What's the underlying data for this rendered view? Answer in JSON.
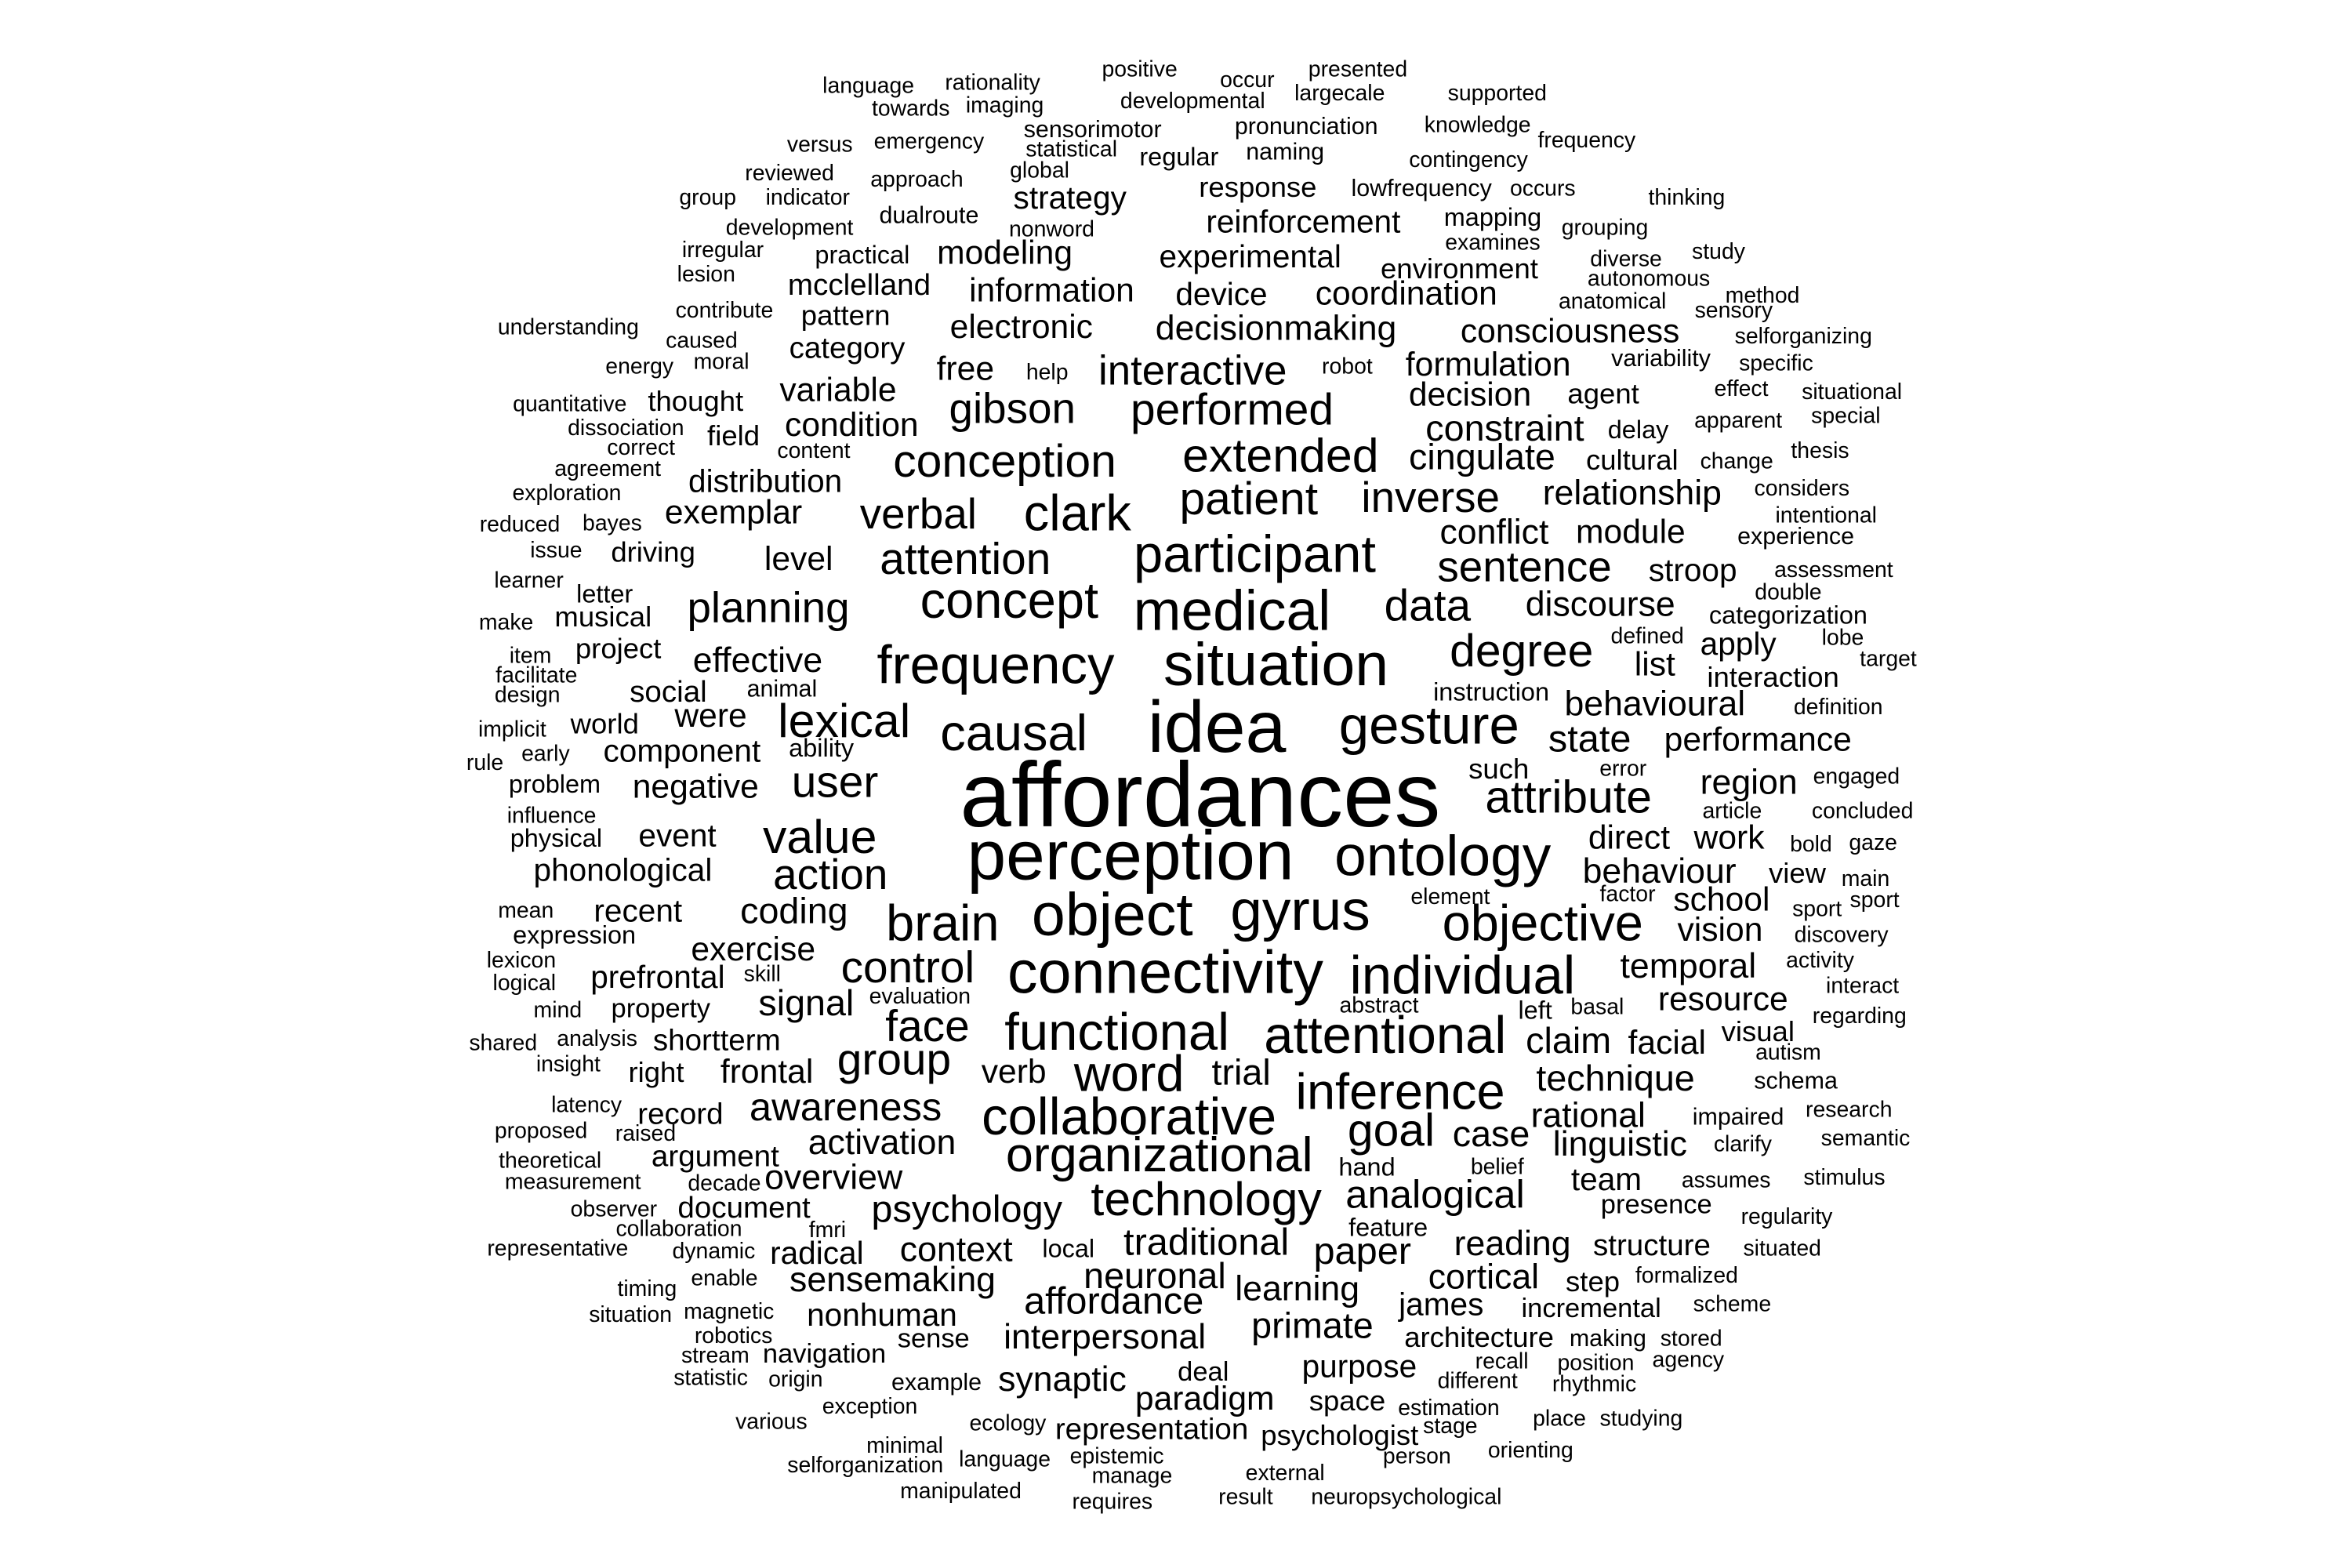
{
  "words": [
    "language",
    "rationality",
    "positive",
    "occur",
    "presented",
    "towards",
    "imaging",
    "developmental",
    "largecale",
    "supported",
    "sensorimotor",
    "pronunciation",
    "knowledge",
    "frequency",
    "versus",
    "emergency",
    "statistical",
    "regular",
    "naming",
    "contingency",
    "reviewed",
    "global",
    "approach",
    "response",
    "lowfrequency",
    "occurs",
    "thinking",
    "group",
    "indicator",
    "strategy",
    "dualroute",
    "reinforcement",
    "mapping",
    "development",
    "nonword",
    "grouping",
    "examines",
    "irregular",
    "practical",
    "modeling",
    "experimental",
    "environment",
    "diverse",
    "study",
    "lesion",
    "mcclelland",
    "information",
    "device",
    "coordination",
    "autonomous",
    "method",
    "anatomical",
    "sensory",
    "contribute",
    "pattern",
    "understanding",
    "electronic",
    "decisionmaking",
    "consciousness",
    "selforganizing",
    "caused",
    "category",
    "variability",
    "specific",
    "energy",
    "moral",
    "free",
    "help",
    "interactive",
    "robot",
    "formulation",
    "quantitative",
    "thought",
    "variable",
    "gibson",
    "performed",
    "decision",
    "agent",
    "effect",
    "situational",
    "dissociation",
    "field",
    "condition",
    "constraint",
    "delay",
    "apparent",
    "special",
    "correct",
    "content",
    "conception",
    "extended",
    "cingulate",
    "cultural",
    "change",
    "thesis",
    "agreement",
    "distribution",
    "patient",
    "inverse",
    "relationship",
    "considers",
    "exploration",
    "exemplar",
    "verbal",
    "clark",
    "intentional",
    "reduced",
    "bayes",
    "conflict",
    "module",
    "experience",
    "issue",
    "driving",
    "participant",
    "level",
    "attention",
    "sentence",
    "stroop",
    "assessment",
    "learner",
    "letter",
    "double",
    "make",
    "musical",
    "planning",
    "concept",
    "medical",
    "data",
    "discourse",
    "categorization",
    "project",
    "item",
    "degree",
    "defined",
    "apply",
    "lobe",
    "facilitate",
    "effective",
    "frequency",
    "situation",
    "list",
    "target",
    "design",
    "animal",
    "social",
    "instruction",
    "interaction",
    "were",
    "world",
    "lexical",
    "idea",
    "gesture",
    "behavioural",
    "definition",
    "implicit",
    "early",
    "component",
    "ability",
    "causal",
    "state",
    "performance",
    "rule",
    "such",
    "error",
    "engaged",
    "problem",
    "negative",
    "user",
    "affordances",
    "attribute",
    "region",
    "influence",
    "article",
    "concluded",
    "physical",
    "event",
    "value",
    "perception",
    "ontology",
    "direct",
    "work",
    "bold",
    "gaze",
    "phonological",
    "action",
    "behaviour",
    "view",
    "main",
    "element",
    "factor",
    "sport",
    "sport",
    "mean",
    "recent",
    "coding",
    "brain",
    "object",
    "gyrus",
    "objective",
    "school",
    "expression",
    "vision",
    "discovery",
    "exercise",
    "lexicon",
    "skill",
    "prefrontal",
    "control",
    "connectivity",
    "individual",
    "temporal",
    "activity",
    "logical",
    "interact",
    "evaluation",
    "signal",
    "resource",
    "mind",
    "property",
    "abstract",
    "left",
    "basal",
    "regarding",
    "face",
    "functional",
    "attentional",
    "facial",
    "visual",
    "shared",
    "analysis",
    "shortterm",
    "claim",
    "autism",
    "group",
    "insight",
    "right",
    "frontal",
    "verb",
    "word",
    "trial",
    "schema",
    "technique",
    "inference",
    "latency",
    "record",
    "awareness",
    "collaborative",
    "rational",
    "research",
    "impaired",
    "proposed",
    "raised",
    "goal",
    "case",
    "semantic",
    "activation",
    "organizational",
    "linguistic",
    "clarify",
    "theoretical",
    "argument",
    "hand",
    "belief",
    "team",
    "assumes",
    "stimulus",
    "measurement",
    "decade",
    "overview",
    "technology",
    "analogical",
    "presence",
    "observer",
    "document",
    "psychology",
    "regularity",
    "collaboration",
    "feature",
    "representative",
    "dynamic",
    "fmri",
    "radical",
    "context",
    "local",
    "traditional",
    "paper",
    "reading",
    "structure",
    "situated",
    "neuronal",
    "cortical",
    "step",
    "formalized",
    "enable",
    "sensemaking",
    "learning",
    "timing",
    "affordance",
    "james",
    "incremental",
    "scheme",
    "magnetic",
    "situation",
    "nonhuman",
    "primate",
    "robotics",
    "sense",
    "interpersonal",
    "architecture",
    "making",
    "stored",
    "stream",
    "navigation",
    "agency",
    "purpose",
    "recall",
    "position",
    "statistic",
    "origin",
    "example",
    "synaptic",
    "deal",
    "different",
    "rhythmic",
    "paradigm",
    "space",
    "estimation",
    "various",
    "exception",
    "ecology",
    "representation",
    "psychologist",
    "stage",
    "place",
    "studying",
    "minimal",
    "epistemic",
    "person",
    "orienting",
    "selforganization",
    "language",
    "manage",
    "external",
    "manipulated",
    "requires",
    "result",
    "neuropsychological"
  ]
}
